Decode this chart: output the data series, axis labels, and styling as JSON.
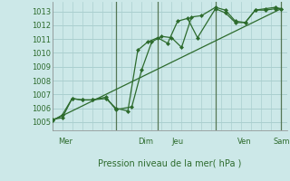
{
  "background_color": "#cce8e8",
  "grid_color": "#aacfcf",
  "line_color": "#2d6b2d",
  "marker_color": "#2d6b2d",
  "xlabel_text": "Pression niveau de la mer( hPa )",
  "x_ticks_labels": [
    "Mer",
    "",
    "Dim",
    "Jeu",
    "",
    "Ven",
    "",
    "Sam"
  ],
  "day_labels": [
    "Mer",
    "Dim",
    "Jeu",
    "Ven",
    "Sam"
  ],
  "day_pos": [
    0.3,
    4.3,
    6.0,
    9.3,
    11.1
  ],
  "ylim": [
    1004.4,
    1013.7
  ],
  "xlim": [
    0,
    11.8
  ],
  "yticks": [
    1005,
    1006,
    1007,
    1008,
    1009,
    1010,
    1011,
    1012,
    1013
  ],
  "vline_x": [
    3.2,
    5.3,
    8.2,
    11.5
  ],
  "trend_x": [
    0,
    11.5
  ],
  "trend_y": [
    1005.1,
    1013.2
  ],
  "line1_x": [
    0.0,
    0.5,
    1.0,
    1.5,
    2.0,
    2.7,
    3.2,
    4.0,
    4.5,
    5.0,
    5.5,
    6.0,
    6.5,
    7.0,
    7.5,
    8.2,
    8.7,
    9.2,
    9.7,
    10.2,
    10.7,
    11.2,
    11.5
  ],
  "line1_y": [
    1005.1,
    1005.5,
    1006.7,
    1006.6,
    1006.6,
    1006.8,
    1005.9,
    1006.1,
    1008.8,
    1010.8,
    1011.2,
    1011.1,
    1010.4,
    1012.6,
    1012.7,
    1013.3,
    1013.1,
    1012.3,
    1012.2,
    1013.1,
    1013.2,
    1013.3,
    1013.2
  ],
  "line2_x": [
    0.0,
    0.5,
    1.0,
    1.5,
    2.0,
    2.7,
    3.2,
    3.8,
    4.3,
    4.8,
    5.3,
    5.8,
    6.3,
    6.8,
    7.3,
    8.2,
    8.7,
    9.2,
    9.7,
    10.2,
    10.7,
    11.2,
    11.5
  ],
  "line2_y": [
    1005.2,
    1005.3,
    1006.7,
    1006.6,
    1006.6,
    1006.7,
    1006.0,
    1005.8,
    1010.2,
    1010.8,
    1011.1,
    1010.7,
    1012.3,
    1012.5,
    1011.1,
    1013.2,
    1012.9,
    1012.2,
    1012.2,
    1013.1,
    1013.1,
    1013.2,
    1013.2
  ],
  "figsize": [
    3.2,
    2.0
  ],
  "dpi": 100
}
